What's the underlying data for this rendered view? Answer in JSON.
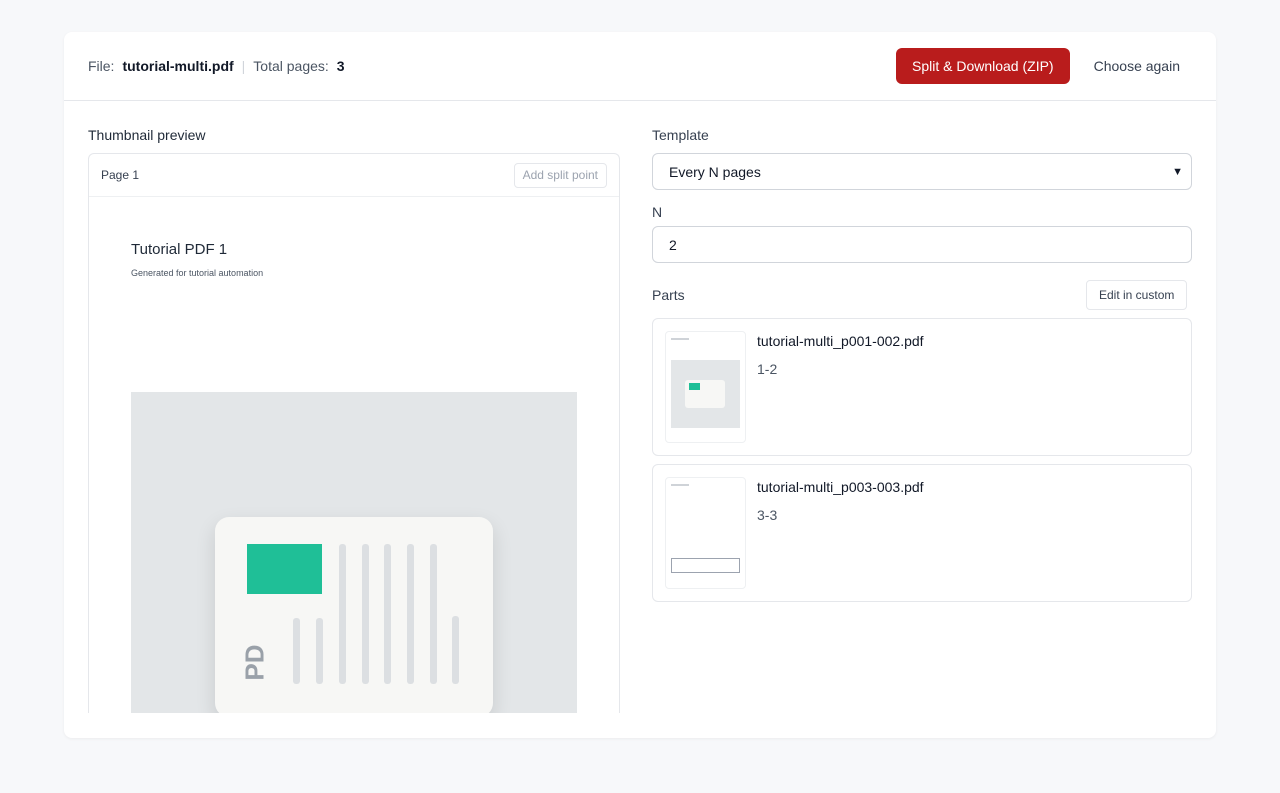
{
  "header": {
    "file_label": "File:",
    "file_name": "tutorial-multi.pdf",
    "separator": "|",
    "pages_label": "Total pages:",
    "pages_value": "3",
    "split_button": "Split & Download (ZIP)",
    "choose_again": "Choose again"
  },
  "preview": {
    "title": "Thumbnail preview",
    "page_label": "Page 1",
    "add_split": "Add split point",
    "pdf_title": "Tutorial PDF 1",
    "pdf_subtitle": "Generated for tutorial automation",
    "illustration_text": "PD"
  },
  "settings": {
    "template_label": "Template",
    "template_value": "Every N pages",
    "n_label": "N",
    "n_value": "2",
    "parts_label": "Parts",
    "edit_custom": "Edit in custom"
  },
  "parts": [
    {
      "name": "tutorial-multi_p001-002.pdf",
      "range": "1-2"
    },
    {
      "name": "tutorial-multi_p003-003.pdf",
      "range": "3-3"
    }
  ],
  "colors": {
    "primary": "#b91c1c",
    "accent_green": "#1fbf97"
  }
}
